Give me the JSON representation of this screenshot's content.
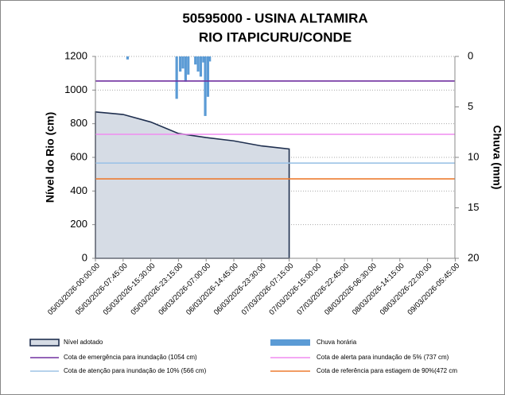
{
  "chart_data": {
    "type": "area",
    "title": "50595000 - USINA ALTAMIRA",
    "subtitle": "RIO ITAPICURU/CONDE",
    "y_label": "Nível do Rio (cm)",
    "y2_label": "Chuva (mm)",
    "categories": [
      "05/03/2026-00:00:00",
      "05/03/2026-07:45:00",
      "05/03/2026-15:30:00",
      "05/03/2026-23:15:00",
      "06/03/2026-07:00:00",
      "06/03/2026-14:45:00",
      "06/03/2026-23:30:00",
      "07/03/2026-07:15:00",
      "07/03/2026-15:00:00",
      "07/03/2026-22:45:00",
      "08/03/2026-06:30:00",
      "08/03/2026-14:15:00",
      "08/03/2026-22:00:00",
      "09/03/2026-05:45:00"
    ],
    "ylim": [
      0,
      1200
    ],
    "yticks": [
      0,
      200,
      400,
      600,
      800,
      1000,
      1200
    ],
    "y2lim": [
      20,
      0
    ],
    "y2ticks": [
      0,
      5,
      10,
      15,
      20
    ],
    "grid": true,
    "series": [
      {
        "name": "Nível adotado",
        "color": "#d6dce5",
        "stroke": "#1f2f4f",
        "values": [
          870,
          855,
          810,
          742,
          718,
          698,
          668,
          650,
          null,
          null,
          null,
          null,
          null,
          null
        ]
      },
      {
        "name": "Chuva horária",
        "color": "#5b9bd5",
        "axis": "y2",
        "type": "bar",
        "x": [
          "05/03/2026-09:00:00",
          "05/03/2026-22:45:00",
          "05/03/2026-23:45:00",
          "06/03/2026-00:30:00",
          "06/03/2026-01:15:00",
          "06/03/2026-02:00:00",
          "06/03/2026-04:00:00",
          "06/03/2026-04:45:00",
          "06/03/2026-05:30:00",
          "06/03/2026-06:15:00",
          "06/03/2026-06:45:00",
          "06/03/2026-07:30:00",
          "06/03/2026-08:00:00"
        ],
        "values": [
          0.3,
          4.2,
          1.5,
          1.2,
          2.5,
          1.8,
          0.8,
          1.5,
          2.0,
          0.6,
          5.9,
          4.0,
          0.5
        ]
      }
    ],
    "reference_lines": [
      {
        "name": "Cota de emergência para inundação (1054 cm)",
        "value": 1054,
        "color": "#7030a0"
      },
      {
        "name": "Cota de alerta para inundação de 5% (737 cm)",
        "value": 737,
        "color": "#f08cf0"
      },
      {
        "name": "Cota de atenção para inundação de 10% (566 cm)",
        "value": 566,
        "color": "#9dc3e6"
      },
      {
        "name": "Cota de referência para estiagem de 90%(472 cm",
        "value": 472,
        "color": "#ed7d31"
      }
    ]
  }
}
